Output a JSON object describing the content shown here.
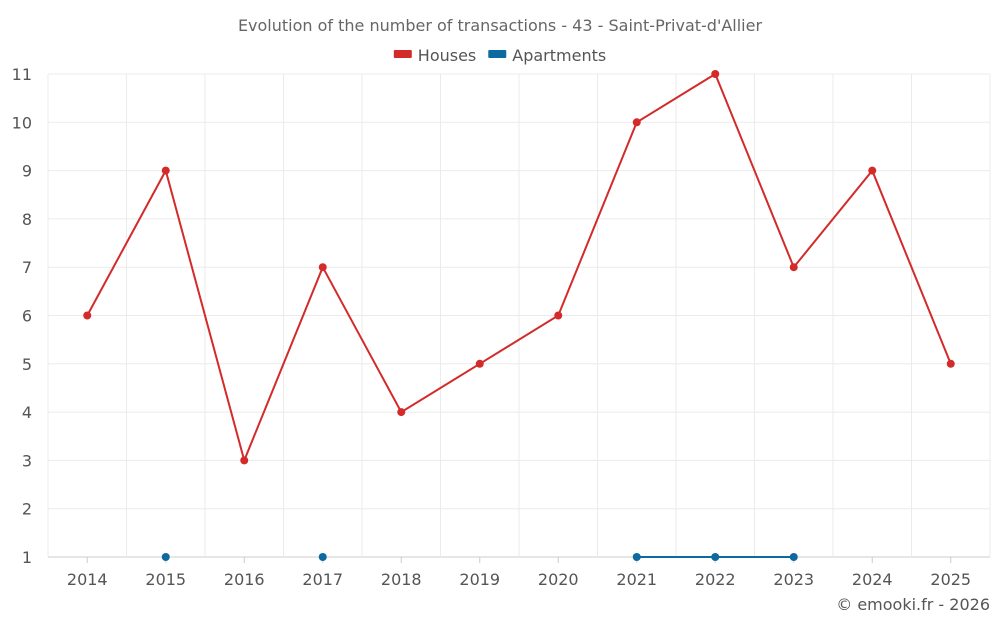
{
  "chart_data": {
    "type": "line",
    "title": "Evolution of the number of transactions - 43 - Saint-Privat-d'Allier",
    "x": [
      "2014",
      "2015",
      "2016",
      "2017",
      "2018",
      "2019",
      "2020",
      "2021",
      "2022",
      "2023",
      "2024",
      "2025"
    ],
    "series": [
      {
        "name": "Houses",
        "color": "#d32a2a",
        "values": [
          6,
          9,
          3,
          7,
          4,
          5,
          6,
          10,
          11,
          7,
          9,
          5
        ]
      },
      {
        "name": "Apartments",
        "color": "#0d6aa0",
        "values": [
          null,
          1,
          null,
          1,
          null,
          null,
          null,
          1,
          1,
          1,
          null,
          null
        ]
      }
    ],
    "ylim": [
      1,
      11
    ],
    "yticks": [
      1,
      2,
      3,
      4,
      5,
      6,
      7,
      8,
      9,
      10,
      11
    ],
    "grid": true,
    "legend": "top-center",
    "credit": "© emooki.fr - 2026"
  }
}
